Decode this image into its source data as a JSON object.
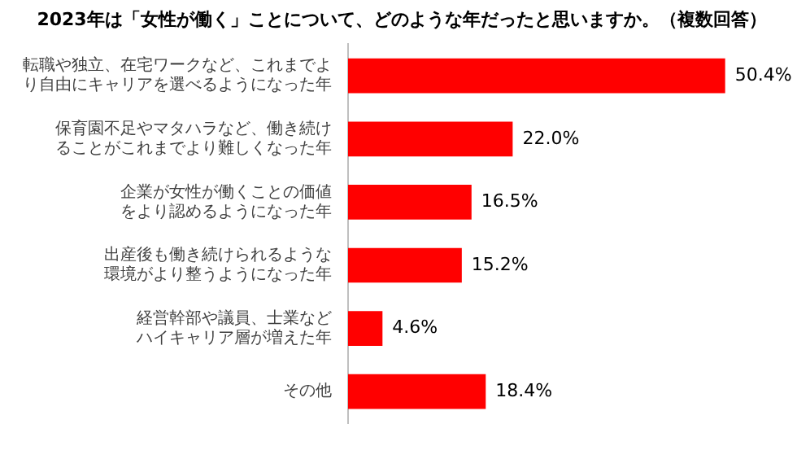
{
  "chart_data": {
    "type": "bar",
    "orientation": "horizontal",
    "title": "2023年は「女性が働く」ことについて、どのような年だったと思いますか。（複数回答）",
    "categories": [
      "転職や独立、在宅ワークなど、これまでより自由にキャリアを選べるようになった年",
      "保育園不足やマタハラなど、働き続けることがこれまでより難しくなった年",
      "企業が女性が働くことの価値をより認めるようになった年",
      "出産後も働き続けられるような環境がより整うようになった年",
      "経営幹部や議員、士業などハイキャリア層が増えた年",
      "その他"
    ],
    "values": [
      50.4,
      22.0,
      16.5,
      15.2,
      4.6,
      18.4
    ],
    "value_labels": [
      "50.4%",
      "22.0%",
      "16.5%",
      "15.2%",
      "4.6%",
      "18.4%"
    ],
    "color": "#ff0000",
    "grid": false,
    "legend": false,
    "tick_labels": "y"
  }
}
